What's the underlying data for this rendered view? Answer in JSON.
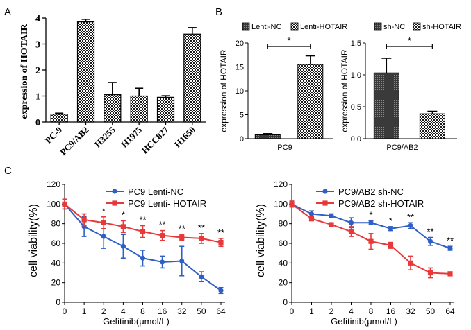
{
  "figure": {
    "panel_labels": [
      "A",
      "B",
      "C"
    ]
  },
  "chart_data": [
    {
      "id": "A",
      "type": "bar",
      "title": "",
      "xlabel": "",
      "ylabel": "expression  of HOTAIR",
      "categories": [
        "PC-9",
        "PC9/AB2",
        "H3255",
        "H1975",
        "HCC827",
        "H1650"
      ],
      "values": [
        0.3,
        3.85,
        1.05,
        1.0,
        0.95,
        3.38
      ],
      "errors": [
        0.04,
        0.1,
        0.47,
        0.3,
        0.06,
        0.25
      ],
      "ylim": [
        0,
        4
      ],
      "yticks": [
        0,
        1,
        2,
        3,
        4
      ],
      "pattern": "checker"
    },
    {
      "id": "B1",
      "type": "bar",
      "title": "",
      "xlabel": "PC9",
      "ylabel": "expression of HOTAIR",
      "series": [
        {
          "name": "Lenti-NC",
          "values": [
            0.8
          ],
          "errors": [
            0.25
          ],
          "pattern": "dark"
        },
        {
          "name": "Lenti-HOTAIR",
          "values": [
            15.5
          ],
          "errors": [
            1.8
          ],
          "pattern": "checker"
        }
      ],
      "ylim": [
        0,
        20
      ],
      "yticks": [
        0,
        5,
        10,
        15,
        20
      ],
      "significance": "*"
    },
    {
      "id": "B2",
      "type": "bar",
      "title": "",
      "xlabel": "PC9/AB2",
      "ylabel": "expression of HOTAIR",
      "series": [
        {
          "name": "sh-NC",
          "values": [
            1.03
          ],
          "errors": [
            0.23
          ],
          "pattern": "dark"
        },
        {
          "name": "sh-HOTAIR",
          "values": [
            0.39
          ],
          "errors": [
            0.04
          ],
          "pattern": "checker"
        }
      ],
      "ylim": [
        0,
        1.5
      ],
      "yticks": [
        "0.0",
        "0.5",
        "1.0",
        "1.5"
      ],
      "significance": "*"
    },
    {
      "id": "C1",
      "type": "line",
      "title": "",
      "xlabel": "Gefitinib(μmol/L)",
      "ylabel": "cell viability(%)",
      "x": [
        "0",
        "1",
        "2",
        "4",
        "8",
        "16",
        "32",
        "50",
        "64"
      ],
      "ylim": [
        0,
        120
      ],
      "yticks": [
        0,
        20,
        40,
        60,
        80,
        100,
        120
      ],
      "series": [
        {
          "name": "PC9 Lenti-NC",
          "color": "#2f5fc4",
          "marker": "circle",
          "values": [
            100,
            77,
            67,
            57,
            45,
            41,
            42,
            26,
            12
          ],
          "errors": [
            5,
            10,
            12,
            12,
            8,
            6,
            15,
            5,
            3
          ]
        },
        {
          "name": "PC9 Lenti- HOTAIR",
          "color": "#e8393a",
          "marker": "square",
          "values": [
            100,
            84,
            81,
            77,
            72,
            68,
            66,
            65,
            61
          ],
          "errors": [
            5,
            6,
            6,
            6,
            6,
            5,
            3,
            5,
            4
          ]
        }
      ],
      "annotations": [
        "",
        "",
        "*",
        "*",
        "**",
        "**",
        "**",
        "**",
        "**"
      ]
    },
    {
      "id": "C2",
      "type": "line",
      "title": "",
      "xlabel": "Gefitinib(μmol/L)",
      "ylabel": "cell viability(%)",
      "x": [
        "0",
        "1",
        "2",
        "4",
        "8",
        "16",
        "32",
        "50",
        "64"
      ],
      "ylim": [
        0,
        120
      ],
      "yticks": [
        0,
        20,
        40,
        60,
        80,
        100,
        120
      ],
      "series": [
        {
          "name": "PC9/AB2 sh-NC",
          "color": "#2f5fc4",
          "marker": "circle",
          "values": [
            100,
            90,
            88,
            81,
            81,
            75,
            78,
            62,
            55
          ],
          "errors": [
            3,
            3,
            2,
            5,
            2,
            2,
            3,
            4,
            2
          ]
        },
        {
          "name": "PC9/AB2 sh-HOTAIR",
          "color": "#e8393a",
          "marker": "square",
          "values": [
            100,
            85,
            79,
            72,
            62,
            58,
            40,
            30,
            29
          ],
          "errors": [
            3,
            2,
            2,
            5,
            8,
            3,
            7,
            5,
            2
          ]
        }
      ],
      "annotations": [
        "",
        "",
        "",
        "",
        "*",
        "*",
        "**",
        "**",
        "**"
      ]
    }
  ]
}
